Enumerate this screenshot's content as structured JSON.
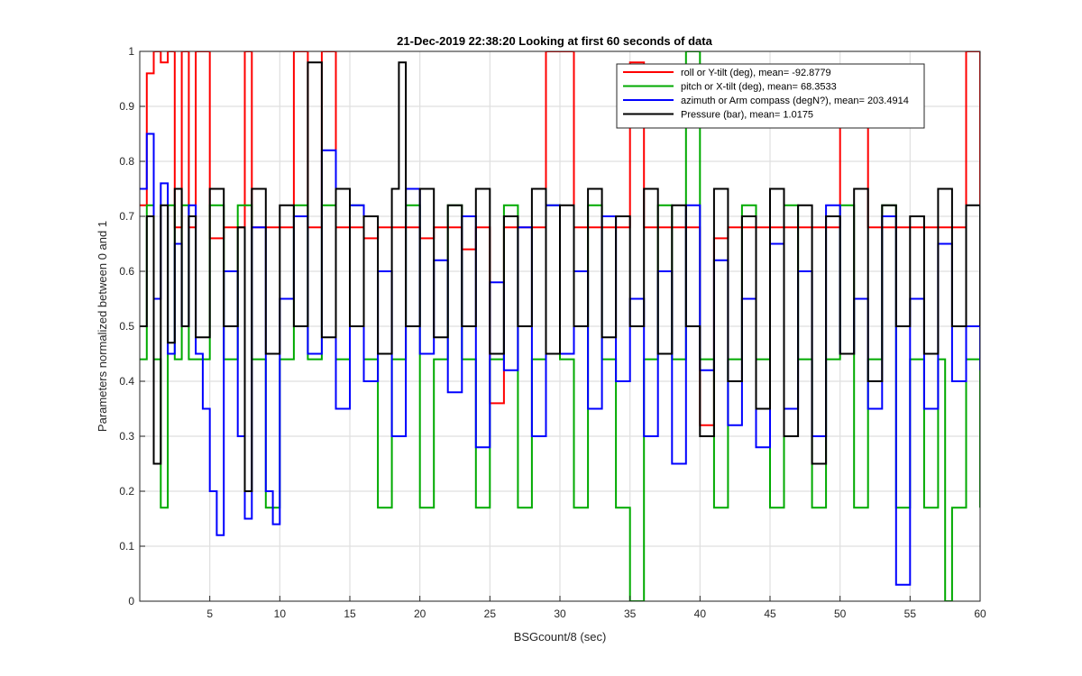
{
  "chart_data": {
    "type": "line",
    "title": "21-Dec-2019 22:38:20 Looking at first 60 seconds of data",
    "xlabel": "BSGcount/8 (sec)",
    "ylabel": "Parameters normalized between 0 and 1",
    "xlim": [
      0,
      60
    ],
    "ylim": [
      0,
      1
    ],
    "xticks": [
      5,
      10,
      15,
      20,
      25,
      30,
      35,
      40,
      45,
      50,
      55,
      60
    ],
    "yticks": [
      0,
      0.1,
      0.2,
      0.3,
      0.4,
      0.5,
      0.6,
      0.7,
      0.8,
      0.9,
      1
    ],
    "grid": true,
    "legend_position": "top-right",
    "series": [
      {
        "name": "roll or Y-tilt (deg), mean= -92.8779",
        "color": "#ff0000",
        "x": [
          0,
          0.5,
          1,
          1.5,
          2,
          2.5,
          3,
          3.5,
          4,
          5,
          6,
          7,
          7.5,
          8,
          9,
          10,
          11,
          12,
          13,
          14,
          15,
          16,
          17,
          18,
          19,
          20,
          21,
          22,
          23,
          24,
          25,
          26,
          27,
          28,
          29,
          30,
          31,
          32,
          33,
          34,
          35,
          36,
          37,
          38,
          39,
          40,
          41,
          42,
          43,
          44,
          45,
          46,
          47,
          48,
          49,
          50,
          51,
          52,
          53,
          54,
          55,
          56,
          57,
          58,
          59,
          60
        ],
        "y": [
          0.72,
          0.96,
          1,
          0.98,
          1,
          0.68,
          1,
          0.68,
          1,
          0.66,
          0.68,
          0.68,
          1,
          0.68,
          0.68,
          0.68,
          1,
          0.68,
          1,
          0.68,
          0.68,
          0.66,
          0.68,
          0.68,
          0.68,
          0.66,
          0.68,
          0.68,
          0.64,
          0.68,
          0.36,
          0.68,
          0.68,
          0.68,
          1,
          1,
          0.68,
          0.68,
          0.68,
          0.68,
          0.98,
          0.68,
          0.68,
          0.68,
          0.68,
          0.32,
          0.66,
          0.68,
          0.68,
          0.68,
          0.68,
          0.68,
          0.68,
          0.68,
          0.68,
          0.96,
          0.96,
          0.68,
          0.68,
          0.68,
          0.68,
          0.68,
          0.68,
          0.68,
          1,
          0.68
        ]
      },
      {
        "name": "pitch or X-tilt (deg), mean= 68.3533",
        "color": "#00aa00",
        "x": [
          0,
          0.5,
          1,
          1.5,
          2,
          2.5,
          3,
          3.5,
          4,
          5,
          6,
          7,
          8,
          9,
          10,
          11,
          12,
          13,
          14,
          15,
          16,
          17,
          18,
          19,
          20,
          21,
          22,
          23,
          24,
          25,
          26,
          27,
          28,
          29,
          30,
          31,
          32,
          33,
          34,
          35,
          36,
          37,
          38,
          39,
          40,
          41,
          42,
          43,
          44,
          45,
          46,
          47,
          48,
          49,
          50,
          51,
          52,
          53,
          54,
          55,
          56,
          57,
          57.5,
          58,
          59,
          60
        ],
        "y": [
          0.44,
          0.72,
          0.44,
          0.17,
          0.72,
          0.44,
          0.72,
          0.44,
          0.44,
          0.72,
          0.44,
          0.72,
          0.44,
          0.17,
          0.44,
          0.72,
          0.44,
          0.72,
          0.44,
          0.72,
          0.44,
          0.17,
          0.44,
          0.72,
          0.17,
          0.44,
          0.72,
          0.44,
          0.17,
          0.44,
          0.72,
          0.17,
          0.44,
          0.72,
          0.44,
          0.17,
          0.72,
          0.44,
          0.17,
          0.0,
          0.44,
          0.72,
          0.44,
          1,
          0.44,
          0.17,
          0.44,
          0.72,
          0.44,
          0.17,
          0.72,
          0.44,
          0.17,
          0.44,
          0.72,
          0.17,
          0.44,
          0.72,
          0.17,
          0.44,
          0.17,
          0.44,
          0.0,
          0.17,
          0.44,
          0.17
        ]
      },
      {
        "name": "azimuth or Arm compass (degN?), mean= 203.4914",
        "color": "#0000ff",
        "x": [
          0,
          0.5,
          1,
          1.5,
          2,
          2.5,
          3,
          3.5,
          4,
          4.5,
          5,
          5.5,
          6,
          7,
          7.5,
          8,
          9,
          9.5,
          10,
          11,
          12,
          13,
          14,
          15,
          16,
          17,
          18,
          19,
          20,
          21,
          22,
          23,
          24,
          25,
          26,
          27,
          28,
          29,
          30,
          31,
          32,
          33,
          34,
          35,
          36,
          37,
          38,
          39,
          40,
          41,
          42,
          43,
          44,
          45,
          46,
          47,
          48,
          49,
          50,
          51,
          52,
          53,
          54,
          55,
          56,
          57,
          58,
          59,
          60
        ],
        "y": [
          0.75,
          0.85,
          0.55,
          0.76,
          0.45,
          0.65,
          0.5,
          0.72,
          0.45,
          0.35,
          0.2,
          0.12,
          0.6,
          0.3,
          0.15,
          0.68,
          0.2,
          0.14,
          0.55,
          0.7,
          0.45,
          0.82,
          0.35,
          0.72,
          0.4,
          0.6,
          0.3,
          0.75,
          0.45,
          0.62,
          0.38,
          0.7,
          0.28,
          0.58,
          0.42,
          0.68,
          0.3,
          0.72,
          0.45,
          0.6,
          0.35,
          0.7,
          0.4,
          0.55,
          0.3,
          0.6,
          0.25,
          0.72,
          0.42,
          0.62,
          0.32,
          0.55,
          0.28,
          0.65,
          0.35,
          0.6,
          0.3,
          0.72,
          0.45,
          0.55,
          0.35,
          0.7,
          0.03,
          0.55,
          0.35,
          0.65,
          0.4,
          0.5,
          0.42
        ]
      },
      {
        "name": "Pressure (bar), mean= 1.0175",
        "color": "#000000",
        "x": [
          0,
          0.5,
          1,
          1.5,
          2,
          2.5,
          3,
          3.5,
          4,
          5,
          6,
          7,
          7.5,
          8,
          9,
          10,
          11,
          12,
          13,
          14,
          15,
          16,
          17,
          18,
          18.5,
          19,
          20,
          21,
          22,
          23,
          24,
          25,
          26,
          27,
          28,
          29,
          30,
          31,
          32,
          33,
          34,
          35,
          36,
          37,
          38,
          39,
          40,
          41,
          42,
          43,
          44,
          45,
          46,
          47,
          48,
          49,
          50,
          51,
          52,
          53,
          54,
          55,
          56,
          57,
          58,
          59,
          60
        ],
        "y": [
          0.5,
          0.7,
          0.25,
          0.72,
          0.47,
          0.75,
          0.5,
          0.7,
          0.48,
          0.75,
          0.5,
          0.68,
          0.2,
          0.75,
          0.45,
          0.72,
          0.5,
          0.98,
          0.48,
          0.75,
          0.5,
          0.7,
          0.45,
          0.75,
          0.98,
          0.5,
          0.75,
          0.48,
          0.72,
          0.5,
          0.75,
          0.45,
          0.7,
          0.5,
          0.75,
          0.45,
          0.72,
          0.5,
          0.75,
          0.48,
          0.7,
          0.5,
          0.75,
          0.45,
          0.72,
          0.5,
          0.3,
          0.75,
          0.4,
          0.7,
          0.35,
          0.75,
          0.3,
          0.72,
          0.25,
          0.7,
          0.45,
          0.75,
          0.4,
          0.72,
          0.5,
          0.7,
          0.45,
          0.75,
          0.5,
          0.72,
          0.5
        ]
      }
    ]
  }
}
